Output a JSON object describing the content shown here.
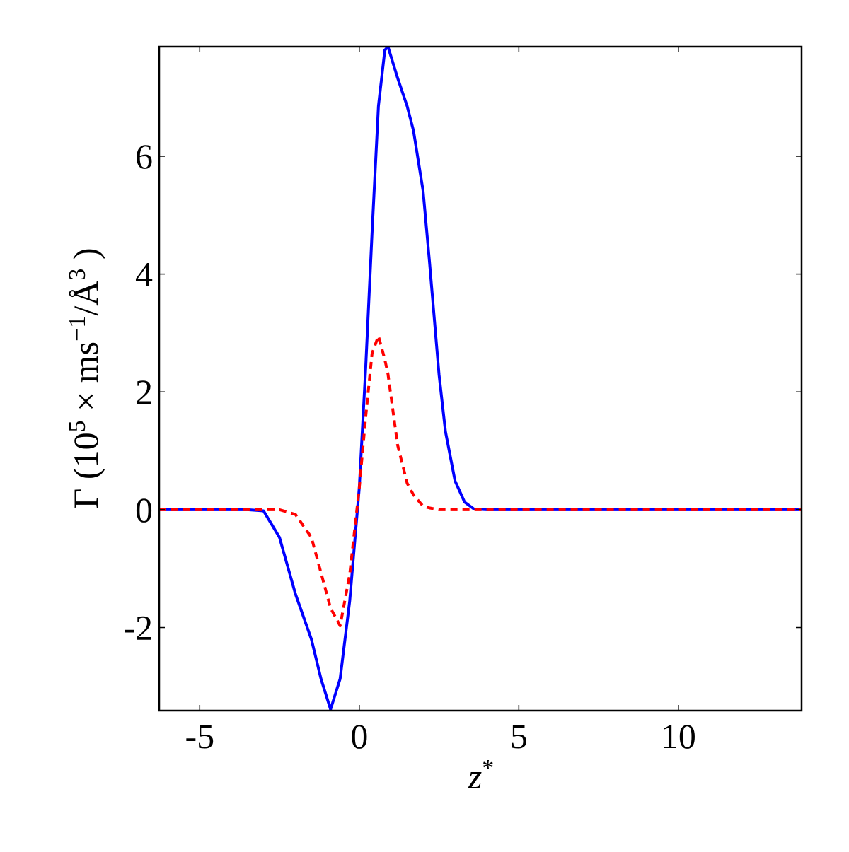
{
  "chart_data": {
    "type": "line",
    "xlabel": [
      "z",
      "*"
    ],
    "ylabel": [
      "Γ (10",
      "5",
      " × ms",
      "−1",
      "/Å",
      "3",
      " )"
    ],
    "x": [
      -6.27,
      -3.5,
      -3,
      -2.5,
      -2,
      -1.5,
      -1.2,
      -0.9,
      -0.6,
      -0.3,
      0,
      0.2,
      0.4,
      0.6,
      0.8,
      0.9,
      1.2,
      1.5,
      1.7,
      2,
      2.2,
      2.5,
      2.7,
      3,
      3.3,
      3.6,
      4,
      13.86
    ],
    "series": [
      {
        "color": "#0000ff",
        "dash": false,
        "values": [
          0,
          0,
          -0.02,
          -0.47,
          -1.43,
          -2.2,
          -2.87,
          -3.39,
          -2.87,
          -1.55,
          0.37,
          2.4,
          4.7,
          6.85,
          7.8,
          7.86,
          7.33,
          6.85,
          6.43,
          5.41,
          4.21,
          2.29,
          1.33,
          0.49,
          0.13,
          0.01,
          0,
          0
        ]
      },
      {
        "color": "#ff0000",
        "dash": true,
        "values": [
          0,
          0,
          0,
          0,
          -0.08,
          -0.47,
          -1.07,
          -1.67,
          -1.97,
          -1.1,
          0.37,
          1.57,
          2.65,
          2.95,
          2.55,
          2.3,
          1.1,
          0.45,
          0.25,
          0.06,
          0.03,
          0,
          0,
          0,
          0,
          0,
          0,
          0
        ]
      }
    ],
    "xlim": [
      -6.27,
      13.86
    ],
    "ylim": [
      -3.41,
      7.86
    ],
    "xticks": [
      -5,
      0,
      5,
      10
    ],
    "yticks": [
      -2,
      0,
      2,
      4,
      6
    ],
    "grid": false
  }
}
